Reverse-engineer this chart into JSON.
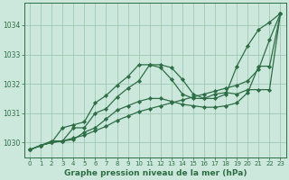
{
  "background_color": "#cce8dc",
  "grid_color": "#a0c8b5",
  "line_color": "#2d6e45",
  "title": "Graphe pression niveau de la mer (hPa)",
  "xlim": [
    -0.5,
    23.5
  ],
  "ylim": [
    1029.5,
    1034.75
  ],
  "xticks": [
    0,
    1,
    2,
    3,
    4,
    5,
    6,
    7,
    8,
    9,
    10,
    11,
    12,
    13,
    14,
    15,
    16,
    17,
    18,
    19,
    20,
    21,
    22,
    23
  ],
  "yticks": [
    1030,
    1031,
    1032,
    1033,
    1034
  ],
  "series": [
    [
      1029.75,
      1029.9,
      1030.0,
      1030.05,
      1030.15,
      1030.25,
      1030.4,
      1030.55,
      1030.75,
      1030.9,
      1031.05,
      1031.15,
      1031.25,
      1031.35,
      1031.45,
      1031.55,
      1031.65,
      1031.75,
      1031.85,
      1031.95,
      1032.1,
      1032.5,
      1033.5,
      1034.4
    ],
    [
      1029.75,
      1029.9,
      1030.0,
      1030.5,
      1030.6,
      1030.7,
      1031.35,
      1031.6,
      1031.95,
      1032.25,
      1032.65,
      1032.65,
      1032.55,
      1032.15,
      1031.65,
      1031.5,
      1031.5,
      1031.65,
      1031.7,
      1031.65,
      1031.8,
      1031.8,
      1031.8,
      1034.4
    ],
    [
      1029.75,
      1029.9,
      1030.0,
      1030.05,
      1030.1,
      1030.35,
      1030.5,
      1030.8,
      1031.1,
      1031.25,
      1031.4,
      1031.5,
      1031.5,
      1031.4,
      1031.3,
      1031.25,
      1031.2,
      1031.2,
      1031.25,
      1031.35,
      1031.7,
      1032.6,
      1032.6,
      1034.4
    ],
    [
      1029.75,
      1029.9,
      1030.05,
      1030.05,
      1030.5,
      1030.5,
      1031.0,
      1031.15,
      1031.55,
      1031.85,
      1032.1,
      1032.65,
      1032.65,
      1032.55,
      1032.15,
      1031.65,
      1031.5,
      1031.5,
      1031.65,
      1032.6,
      1033.3,
      1033.85,
      1034.1,
      1034.4
    ]
  ]
}
